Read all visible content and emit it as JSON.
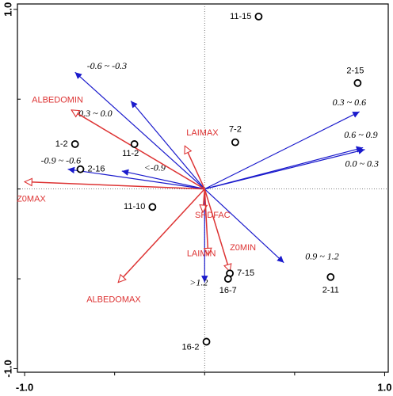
{
  "chart_data": {
    "type": "biplot",
    "xlim": [
      -1.04,
      1.02
    ],
    "ylim": [
      -1.02,
      1.03
    ],
    "xticks": [
      {
        "value": -1.0,
        "label": "-1.0"
      },
      {
        "value": 1.0,
        "label": "1.0"
      }
    ],
    "yticks": [
      {
        "value": -1.0,
        "label": "-1.0"
      },
      {
        "value": 1.0,
        "label": "1.0"
      }
    ],
    "xminorticks": [
      -0.5,
      0,
      0.5
    ],
    "yminorticks": [
      -0.5,
      0,
      0.5
    ],
    "zero_lines": true,
    "samples": {
      "labels": [
        "11-15",
        "2-15",
        "1-2",
        "11-2",
        "2-16",
        "7-2",
        "11-10",
        "7-15",
        "16-7",
        "2-11",
        "16-2"
      ],
      "x": [
        0.3,
        0.85,
        -0.72,
        -0.39,
        -0.69,
        0.17,
        -0.29,
        0.14,
        0.13,
        0.7,
        0.01
      ],
      "y": [
        0.96,
        0.59,
        0.25,
        0.25,
        0.11,
        0.26,
        -0.1,
        -0.47,
        -0.5,
        -0.49,
        -0.85
      ]
    },
    "class_vectors": {
      "color": "#1a1acc",
      "labels": [
        "-0.6 ~ -0.3",
        "-0.3 ~ 0.0",
        "-0.9 ~ -0.6",
        "<-0.9",
        "0.3 ~ 0.6",
        "0.6 ~ 0.9",
        "0.0 ~ 0.3",
        "0.9 ~ 1.2",
        ">1.2"
      ],
      "x": [
        -0.72,
        -0.41,
        -0.76,
        -0.46,
        0.86,
        0.88,
        0.89,
        0.44,
        0.0
      ],
      "y": [
        0.65,
        0.49,
        0.11,
        0.1,
        0.43,
        0.23,
        0.22,
        -0.41,
        -0.52
      ]
    },
    "env_vectors": {
      "color": "#dd3333",
      "labels": [
        "ALBEDOMIN",
        "LAIMAX",
        "Z0MAX",
        "SHDFAC",
        "LAIMIN",
        "Z0MIN",
        "ALBEDOMAX"
      ],
      "x": [
        -0.74,
        -0.11,
        -1.0,
        -0.01,
        0.02,
        0.14,
        -0.48
      ],
      "y": [
        0.44,
        0.24,
        0.04,
        -0.13,
        -0.37,
        -0.46,
        -0.52
      ]
    }
  }
}
